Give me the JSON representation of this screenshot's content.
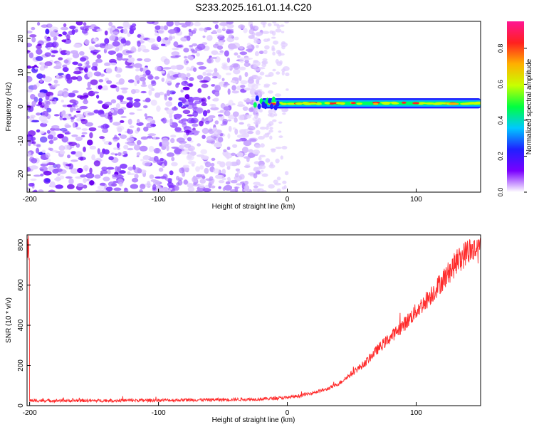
{
  "title": "S233.2025.161.01.14.C20",
  "chart_data": [
    {
      "type": "heatmap",
      "xlabel": "Height of straight line (km)",
      "ylabel": "Frequency (Hz)",
      "xlim": [
        -202,
        150
      ],
      "ylim": [
        -25,
        25
      ],
      "xticks": [
        -200,
        -100,
        0,
        100
      ],
      "yticks": [
        -20,
        -10,
        0,
        10,
        20
      ],
      "colorbar": {
        "label": "Normalized spectral amplitude",
        "range": [
          0,
          0.95
        ],
        "ticks": [
          0.0,
          0.2,
          0.4,
          0.6,
          0.8
        ],
        "tick_labels": [
          "0.0",
          "0.2",
          "0.4",
          "0.6",
          "0.8"
        ],
        "colormap": [
          "#ffffff",
          "#7a00ff",
          "#2020ff",
          "#00c8ff",
          "#00ff40",
          "#c8ff00",
          "#ffb000",
          "#ff2020",
          "#ff1493"
        ]
      },
      "features": {
        "noise_region_x": [
          -202,
          -20
        ],
        "signal_band_x": [
          -25,
          150
        ],
        "signal_band_center_hz": 1,
        "signal_band_halfwidth_hz": 1.5
      },
      "grid": false
    },
    {
      "type": "line",
      "xlabel": "Height of straight line (km)",
      "ylabel": "SNR (10 * v/v)",
      "xlim": [
        -202,
        150
      ],
      "ylim": [
        0,
        850
      ],
      "xticks": [
        -200,
        -100,
        0,
        100
      ],
      "yticks": [
        0,
        200,
        400,
        600,
        800
      ],
      "series": [
        {
          "color": "#ff2a2a",
          "x": [
            -200,
            -150,
            -100,
            -50,
            -20,
            0,
            10,
            20,
            30,
            40,
            50,
            60,
            70,
            80,
            90,
            100,
            110,
            120,
            130,
            140,
            150
          ],
          "values": [
            25,
            25,
            27,
            30,
            33,
            40,
            50,
            65,
            80,
            110,
            160,
            210,
            280,
            340,
            400,
            470,
            540,
            620,
            700,
            770,
            780
          ]
        }
      ],
      "grid": false
    }
  ]
}
